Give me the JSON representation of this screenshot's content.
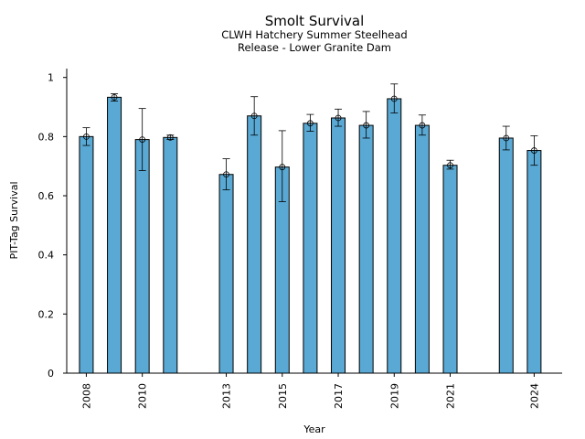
{
  "chart_data": {
    "type": "bar",
    "title": "Smolt Survival",
    "subtitle_lines": [
      "CLWH Hatchery Summer Steelhead",
      "Release - Lower Granite Dam"
    ],
    "xlabel": "Year",
    "ylabel": "PIT-Tag Survival",
    "xlim": [
      2007.3,
      2025.0
    ],
    "ylim": [
      0,
      1.03
    ],
    "y_ticks": [
      0,
      0.2,
      0.4,
      0.6,
      0.8,
      1
    ],
    "y_tick_labels": [
      "0",
      "0.2",
      "0.4",
      "0.6",
      "0.8",
      "1"
    ],
    "x_ticks": [
      2008,
      2010,
      2013,
      2015,
      2017,
      2019,
      2021,
      2024
    ],
    "x_tick_labels": [
      "2008",
      "2010",
      "2013",
      "2015",
      "2017",
      "2019",
      "2021",
      "2024"
    ],
    "bar_color": "#5aa9d4",
    "grid": false,
    "points": [
      {
        "x": 2008,
        "y": 0.8,
        "lo": 0.77,
        "hi": 0.83
      },
      {
        "x": 2009,
        "y": 0.933,
        "lo": 0.92,
        "hi": 0.945
      },
      {
        "x": 2010,
        "y": 0.79,
        "lo": 0.685,
        "hi": 0.895
      },
      {
        "x": 2011,
        "y": 0.797,
        "lo": 0.79,
        "hi": 0.805
      },
      {
        "x": 2013,
        "y": 0.672,
        "lo": 0.62,
        "hi": 0.725
      },
      {
        "x": 2014,
        "y": 0.87,
        "lo": 0.805,
        "hi": 0.935
      },
      {
        "x": 2015,
        "y": 0.697,
        "lo": 0.58,
        "hi": 0.82
      },
      {
        "x": 2016,
        "y": 0.845,
        "lo": 0.818,
        "hi": 0.875
      },
      {
        "x": 2017,
        "y": 0.863,
        "lo": 0.835,
        "hi": 0.893
      },
      {
        "x": 2018,
        "y": 0.838,
        "lo": 0.795,
        "hi": 0.885
      },
      {
        "x": 2019,
        "y": 0.928,
        "lo": 0.88,
        "hi": 0.978
      },
      {
        "x": 2020,
        "y": 0.838,
        "lo": 0.805,
        "hi": 0.873
      },
      {
        "x": 2021,
        "y": 0.703,
        "lo": 0.69,
        "hi": 0.72
      },
      {
        "x": 2023,
        "y": 0.795,
        "lo": 0.755,
        "hi": 0.835
      },
      {
        "x": 2024,
        "y": 0.753,
        "lo": 0.703,
        "hi": 0.803
      }
    ]
  }
}
